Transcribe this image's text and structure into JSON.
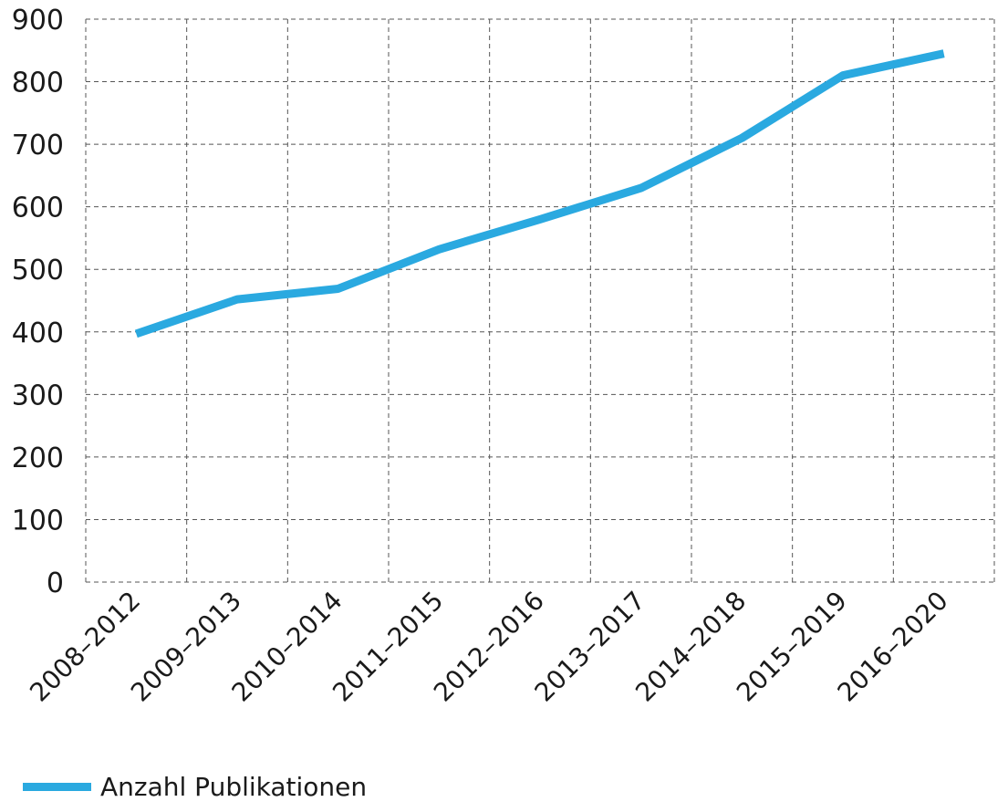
{
  "chart_data": {
    "type": "line",
    "categories": [
      "2008–2012",
      "2009–2013",
      "2010–2014",
      "2011–2015",
      "2012–2016",
      "2013–2017",
      "2014–2018",
      "2015–2019",
      "2016–2020"
    ],
    "series": [
      {
        "name": "Anzahl Publikationen",
        "values": [
          397,
          452,
          469,
          532,
          580,
          630,
          710,
          810,
          845
        ],
        "color": "#2aa9e0"
      }
    ],
    "ylim": [
      0,
      900
    ],
    "yticks": [
      "0",
      "100",
      "200",
      "300",
      "400",
      "500",
      "600",
      "700",
      "800",
      "900"
    ],
    "title": "",
    "xlabel": "",
    "ylabel": "",
    "grid": true,
    "legend_position": "bottom-left"
  }
}
